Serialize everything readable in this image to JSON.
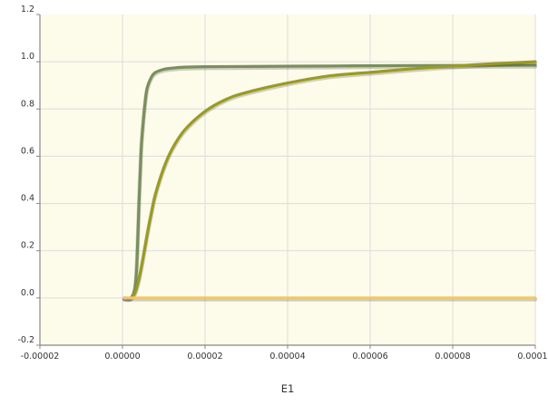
{
  "chart_data": {
    "type": "line",
    "title": "",
    "xlabel": "E1",
    "ylabel": "",
    "xlim": [
      -2e-05,
      0.0001
    ],
    "ylim": [
      -0.2,
      1.2
    ],
    "x_ticks": [
      -2e-05,
      0.0,
      2e-05,
      4e-05,
      6e-05,
      8e-05,
      0.0001
    ],
    "x_tick_labels": [
      "-0.00002",
      "0.00000",
      "0.00002",
      "0.00004",
      "0.00006",
      "0.00008",
      "0.00010"
    ],
    "y_ticks": [
      -0.2,
      0.0,
      0.2,
      0.4,
      0.6,
      0.8,
      1.0,
      1.2
    ],
    "y_tick_labels": [
      "-0.2",
      "0.0",
      "0.2",
      "0.4",
      "0.6",
      "0.8",
      "1.0",
      "1.2"
    ],
    "grid": true,
    "plot_background": "#fdfbea",
    "series": [
      {
        "color": "#7a8f5e",
        "x": [
          5e-07,
          2e-06,
          3e-06,
          3.5e-06,
          4e-06,
          4.5e-06,
          5e-06,
          5.5e-06,
          6e-06,
          7e-06,
          8e-06,
          1e-05,
          1.2e-05,
          1.5e-05,
          2e-05,
          3e-05,
          5e-05,
          7e-05,
          0.0001
        ],
        "y": [
          0.0,
          0.0,
          0.04,
          0.15,
          0.4,
          0.62,
          0.74,
          0.83,
          0.89,
          0.935,
          0.955,
          0.968,
          0.973,
          0.977,
          0.979,
          0.98,
          0.982,
          0.984,
          0.985
        ]
      },
      {
        "color": "#9a9b22",
        "x": [
          5e-07,
          2e-06,
          3e-06,
          4e-06,
          5e-06,
          6e-06,
          7e-06,
          8e-06,
          1e-05,
          1.2e-05,
          1.5e-05,
          2e-05,
          2.5e-05,
          3e-05,
          4e-05,
          5e-05,
          6e-05,
          7e-05,
          8e-05,
          9e-05,
          0.0001
        ],
        "y": [
          0.0,
          0.0,
          0.02,
          0.08,
          0.17,
          0.27,
          0.36,
          0.44,
          0.55,
          0.63,
          0.71,
          0.79,
          0.84,
          0.87,
          0.91,
          0.94,
          0.955,
          0.97,
          0.982,
          0.992,
          1.0
        ]
      },
      {
        "color": "#f2c66d",
        "x": [
          5e-07,
          0.0001
        ],
        "y": [
          0.0,
          0.0
        ]
      }
    ]
  }
}
